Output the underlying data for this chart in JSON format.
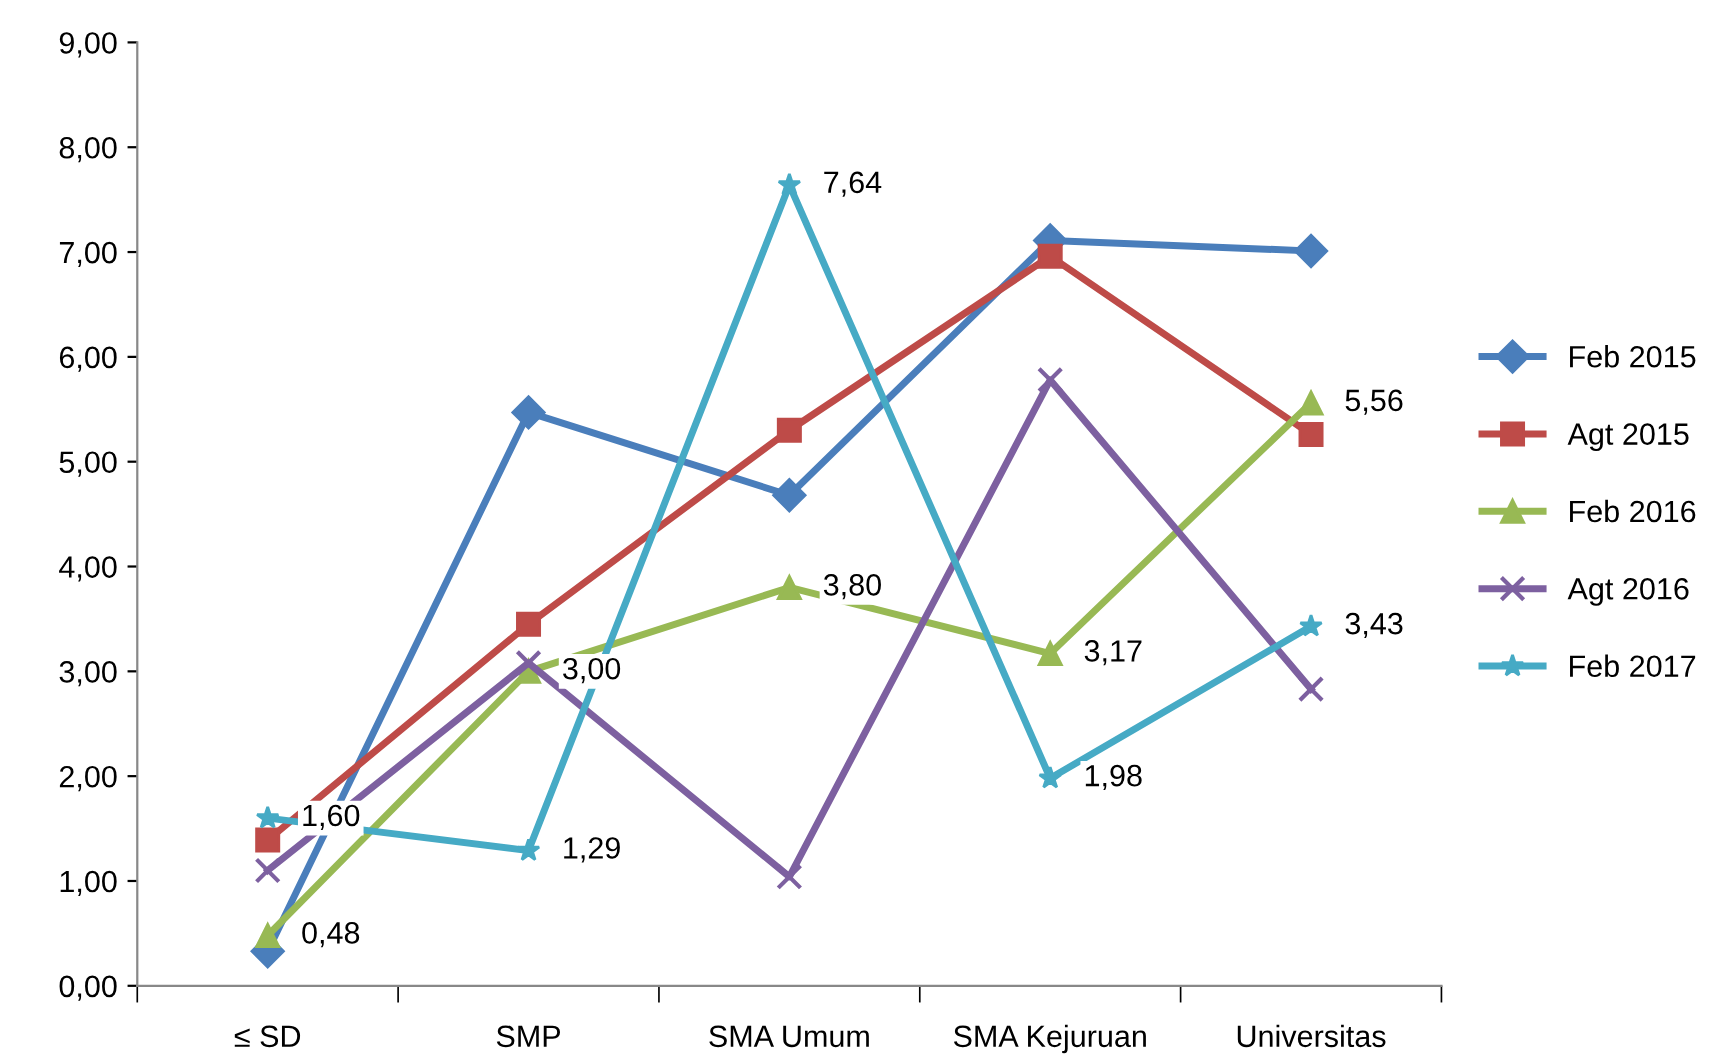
{
  "chart_data": {
    "type": "line",
    "categories": [
      "≤ SD",
      "SMP",
      "SMA Umum",
      "SMA Kejuruan",
      "Universitas"
    ],
    "series": [
      {
        "name": "Feb 2015",
        "color": "#4a7ebb",
        "marker": "diamond",
        "values": [
          0.33,
          5.47,
          4.68,
          7.11,
          7.01
        ]
      },
      {
        "name": "Agt 2015",
        "color": "#be4b48",
        "marker": "square",
        "values": [
          1.39,
          3.45,
          5.3,
          6.96,
          5.26
        ]
      },
      {
        "name": "Feb 2016",
        "color": "#98b954",
        "marker": "triangle",
        "values": [
          0.48,
          3.0,
          3.8,
          3.17,
          5.56
        ],
        "value_labels": [
          "0,48",
          "3,00",
          "3,80",
          "3,17",
          "5,56"
        ]
      },
      {
        "name": "Agt 2016",
        "color": "#7d60a0",
        "marker": "cross",
        "values": [
          1.1,
          3.08,
          1.04,
          5.78,
          2.83
        ]
      },
      {
        "name": "Feb 2017",
        "color": "#46aac5",
        "marker": "star",
        "values": [
          1.6,
          1.29,
          7.64,
          1.98,
          3.43
        ],
        "value_labels": [
          "1,60",
          "1,29",
          "7,64",
          "1,98",
          "3,43"
        ]
      }
    ],
    "ylim": [
      0,
      9
    ],
    "yticks": [
      {
        "value": 0,
        "label": "0,00"
      },
      {
        "value": 1,
        "label": "1,00"
      },
      {
        "value": 2,
        "label": "2,00"
      },
      {
        "value": 3,
        "label": "3,00"
      },
      {
        "value": 4,
        "label": "4,00"
      },
      {
        "value": 5,
        "label": "5,00"
      },
      {
        "value": 6,
        "label": "6,00"
      },
      {
        "value": 7,
        "label": "7,00"
      },
      {
        "value": 8,
        "label": "8,00"
      },
      {
        "value": 9,
        "label": "9,00"
      }
    ],
    "grid": false,
    "legend": "right",
    "line_style": "solid"
  }
}
